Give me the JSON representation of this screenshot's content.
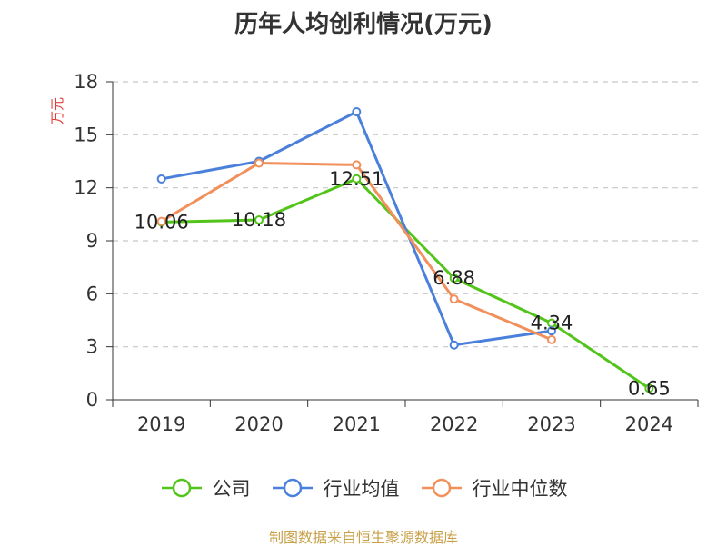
{
  "chart_data": {
    "type": "line",
    "title": "历年人均创利情况(万元)",
    "ylabel": "万元",
    "xlabel": "",
    "categories": [
      "2019",
      "2020",
      "2021",
      "2022",
      "2023",
      "2024"
    ],
    "ylim": [
      0,
      18
    ],
    "yticks": [
      0,
      3,
      6,
      9,
      12,
      15,
      18
    ],
    "grid": true,
    "legend_position": "bottom",
    "series": [
      {
        "name": "公司",
        "color": "#52c41a",
        "values": [
          10.06,
          10.18,
          12.51,
          6.88,
          4.34,
          0.65
        ],
        "data_labels": [
          "10.06",
          "10.18",
          "12.51",
          "6.88",
          "4.34",
          "0.65"
        ]
      },
      {
        "name": "行业均值",
        "color": "#4a7fdc",
        "values": [
          12.5,
          13.5,
          16.3,
          3.1,
          3.9,
          null
        ]
      },
      {
        "name": "行业中位数",
        "color": "#f2905c",
        "values": [
          10.1,
          13.4,
          13.3,
          5.7,
          3.4,
          null
        ]
      }
    ]
  },
  "source": "制图数据来自恒生聚源数据库"
}
